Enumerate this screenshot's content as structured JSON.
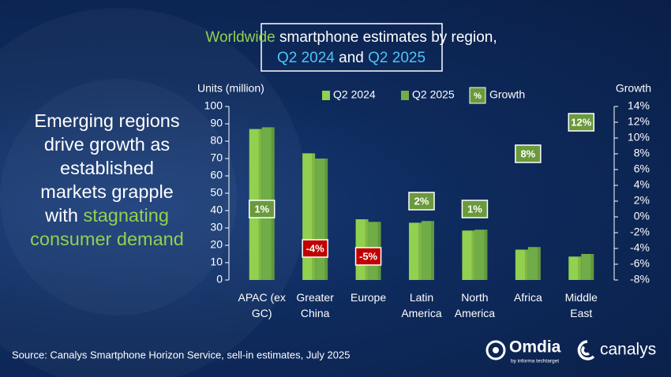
{
  "headline_lines": [
    [
      {
        "text": "Emerging regions"
      }
    ],
    [
      {
        "text": "drive growth as"
      }
    ],
    [
      {
        "text": "established"
      }
    ],
    [
      {
        "text": "markets grapple"
      }
    ],
    [
      {
        "text": "with "
      },
      {
        "text": "stagnating",
        "color": "#92d050"
      }
    ],
    [
      {
        "text": "consumer demand",
        "color": "#92d050"
      }
    ]
  ],
  "source": "Source: Canalys Smartphone Horizon Service, sell-in estimates, July 2025",
  "logos": {
    "omdia": "Omdia",
    "omdia_tagline": "by informa techtarget",
    "canalys": "canalys"
  },
  "chart_data": {
    "type": "bar",
    "title_lines": [
      [
        {
          "text": "Worldwide",
          "color": "#92d050"
        },
        {
          "text": " smartphone estimates by region,"
        }
      ],
      [
        {
          "text": "Q2 2024",
          "color": "#4fc3f7"
        },
        {
          "text": " and "
        },
        {
          "text": "Q2 2025",
          "color": "#4fc3f7"
        }
      ]
    ],
    "categories": [
      "APAC (ex GC)",
      "Greater China",
      "Europe",
      "Latin America",
      "North America",
      "Africa",
      "Middle East"
    ],
    "y_label": "Units (million)",
    "y2_label": "Growth",
    "ylim": [
      0,
      100
    ],
    "yticks": [
      0,
      10,
      20,
      30,
      40,
      50,
      60,
      70,
      80,
      90,
      100
    ],
    "y2lim": [
      -8,
      14
    ],
    "y2ticks": [
      {
        "value": -8,
        "label": "-8%"
      },
      {
        "value": -6,
        "label": "-6%"
      },
      {
        "value": -4,
        "label": "-4%"
      },
      {
        "value": -2,
        "label": "-2%"
      },
      {
        "value": 0,
        "label": "0%"
      },
      {
        "value": 2,
        "label": "2%"
      },
      {
        "value": 4,
        "label": "4%"
      },
      {
        "value": 6,
        "label": "6%"
      },
      {
        "value": 8,
        "label": "8%"
      },
      {
        "value": 10,
        "label": "10%"
      },
      {
        "value": 12,
        "label": "12%"
      },
      {
        "value": 14,
        "label": "14%"
      }
    ],
    "legend_symbol": "%",
    "series": [
      {
        "name": "Q2 2024",
        "color": "#92d050",
        "values": [
          87,
          73,
          35,
          33,
          28.5,
          17.5,
          13.5
        ]
      },
      {
        "name": "Q2 2025",
        "color": "#70ad47",
        "values": [
          88,
          70,
          33.5,
          34,
          29,
          19,
          15
        ]
      },
      {
        "name": "Growth",
        "type": "label-box",
        "axis": "y2",
        "color": "#6a9a3c",
        "negative_color": "#c00000",
        "values": [
          1,
          -4,
          -5,
          2,
          1,
          8,
          12
        ],
        "value_labels": [
          "1%",
          "-4%",
          "-5%",
          "2%",
          "1%",
          "8%",
          "12%"
        ]
      }
    ]
  }
}
